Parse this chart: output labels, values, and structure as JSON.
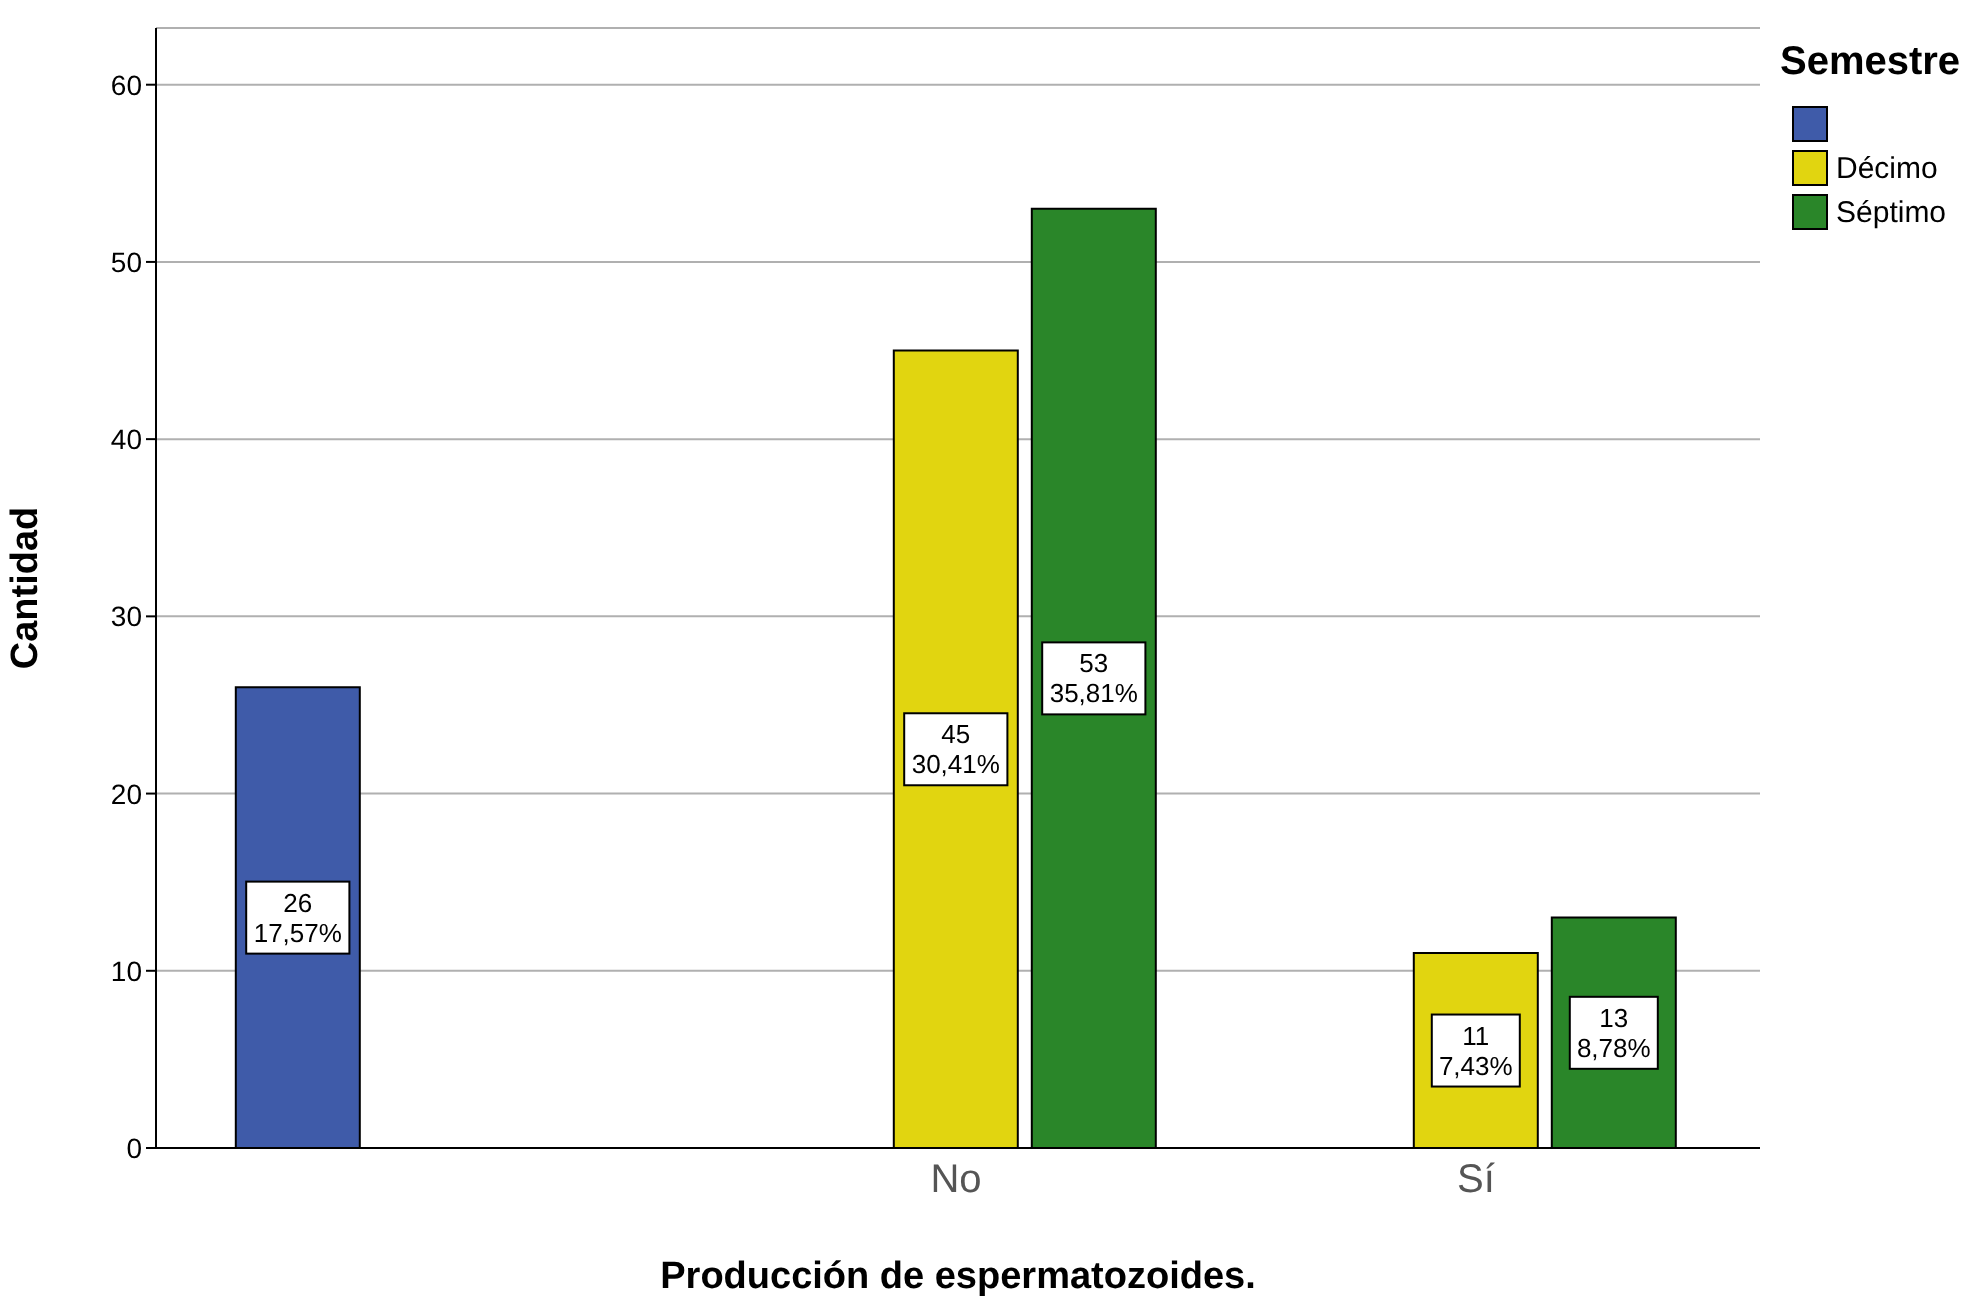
{
  "chart_data": {
    "type": "bar",
    "xlabel": "Producción de espermatozoides.",
    "ylabel": "Cantidad",
    "legend_title": "Semestre",
    "categories": [
      null,
      "No",
      "Sí"
    ],
    "series": [
      {
        "color": "#3f5ba9",
        "values": [
          26,
          null,
          null
        ],
        "value_labels": [
          "26\n17,57%",
          null,
          null
        ]
      },
      {
        "name": "Décimo",
        "color": "#e1d510",
        "values": [
          null,
          45,
          11
        ],
        "value_labels": [
          null,
          "45\n30,41%",
          "11\n7,43%"
        ]
      },
      {
        "name": "Séptimo",
        "color": "#2a8629",
        "values": [
          null,
          53,
          13
        ],
        "value_labels": [
          null,
          "53\n35,81%",
          "13\n8,78%"
        ]
      }
    ],
    "ylim": [
      0,
      63.2
    ],
    "yticks": [
      0,
      10,
      20,
      30,
      40,
      50,
      60
    ],
    "grid": "y",
    "legend": "top right"
  }
}
